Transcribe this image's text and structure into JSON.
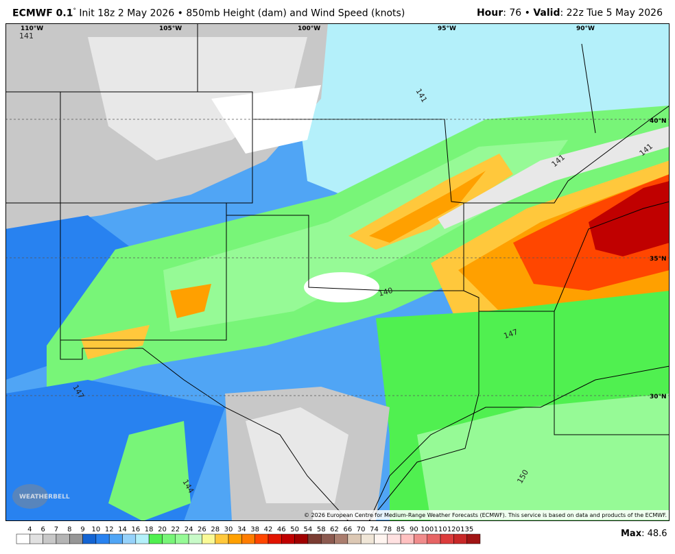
{
  "header": {
    "model": "ECMWF 0.1",
    "degree": "°",
    "description": " Init 18z 2 May 2026 • 850mb Height (dam) and Wind Speed (knots)",
    "hour_label": "Hour",
    "hour_value": ": 76 • ",
    "valid_label": "Valid",
    "valid_value": ": 22z Tue 5 May 2026"
  },
  "map": {
    "longitude_labels": [
      "110°W",
      "105°W",
      "100°W",
      "95°W",
      "90°W"
    ],
    "latitude_labels": [
      "40°N",
      "35°N",
      "30°N"
    ],
    "contour_labels": [
      "141",
      "141",
      "141",
      "141",
      "147",
      "150",
      "144",
      "147",
      "140"
    ],
    "logo": "WEATHERBELL",
    "copyright": "© 2026 European Centre for Medium-Range Weather Forecasts (ECMWF). This service is based on data and products of the ECMWF."
  },
  "colorbar": {
    "levels": [
      "4",
      "6",
      "7",
      "8",
      "9",
      "10",
      "12",
      "14",
      "16",
      "18",
      "20",
      "22",
      "24",
      "26",
      "28",
      "30",
      "34",
      "38",
      "42",
      "46",
      "50",
      "54",
      "58",
      "62",
      "66",
      "70",
      "74",
      "78",
      "85",
      "90",
      "100",
      "110",
      "120",
      "135"
    ],
    "colors": [
      "#ffffff",
      "#e1e1e1",
      "#c8c8c8",
      "#b4b4b4",
      "#969696",
      "#1464d2",
      "#2882f0",
      "#50a5f5",
      "#96d2fa",
      "#b4f0fa",
      "#50f050",
      "#78f578",
      "#96fa96",
      "#c8fac8",
      "#fafa96",
      "#ffc83c",
      "#ffa000",
      "#ff7d00",
      "#ff4600",
      "#e11400",
      "#c00000",
      "#a00000",
      "#7a3c32",
      "#8c5a50",
      "#aa7d6e",
      "#dcc8b4",
      "#f0e6d7",
      "#fff5f0",
      "#ffe1e1",
      "#ffc0c0",
      "#f08c8c",
      "#e66464",
      "#dc3c3c",
      "#c82828",
      "#a01414"
    ]
  },
  "max": {
    "label": "Max",
    "value": ": 48.6"
  }
}
